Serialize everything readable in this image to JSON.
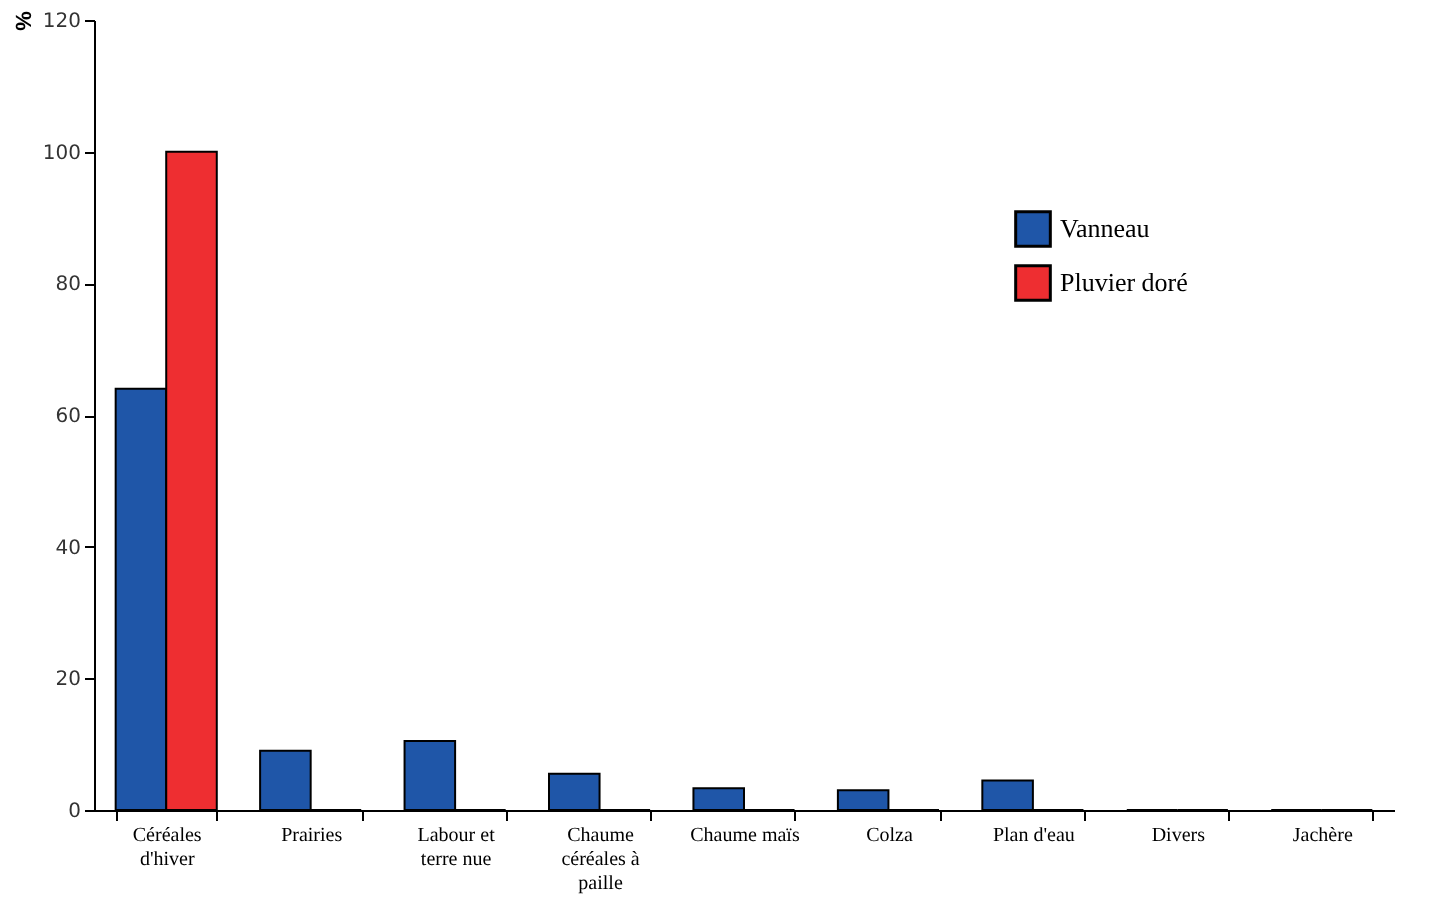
{
  "chart_data": {
    "type": "bar",
    "ylabel": "%",
    "categories": [
      "Céréales d'hiver",
      "Prairies",
      "Labour et terre nue",
      "Chaume céréales à paille",
      "Chaume maïs",
      "Colza",
      "Plan d'eau",
      "Divers",
      "Jachère"
    ],
    "series": [
      {
        "name": "Vanneau",
        "color": "#1f56a8",
        "values": [
          64,
          9,
          10.5,
          5.5,
          3.3,
          3,
          4.5,
          0,
          0
        ]
      },
      {
        "name": "Pluvier doré",
        "color": "#ee2e31",
        "values": [
          100,
          0,
          0,
          0,
          0,
          0,
          0,
          0,
          0
        ]
      }
    ],
    "ylim": [
      0,
      120
    ],
    "yticks": [
      0,
      20,
      40,
      60,
      80,
      100,
      120
    ],
    "grid": false,
    "legend": "top right"
  }
}
